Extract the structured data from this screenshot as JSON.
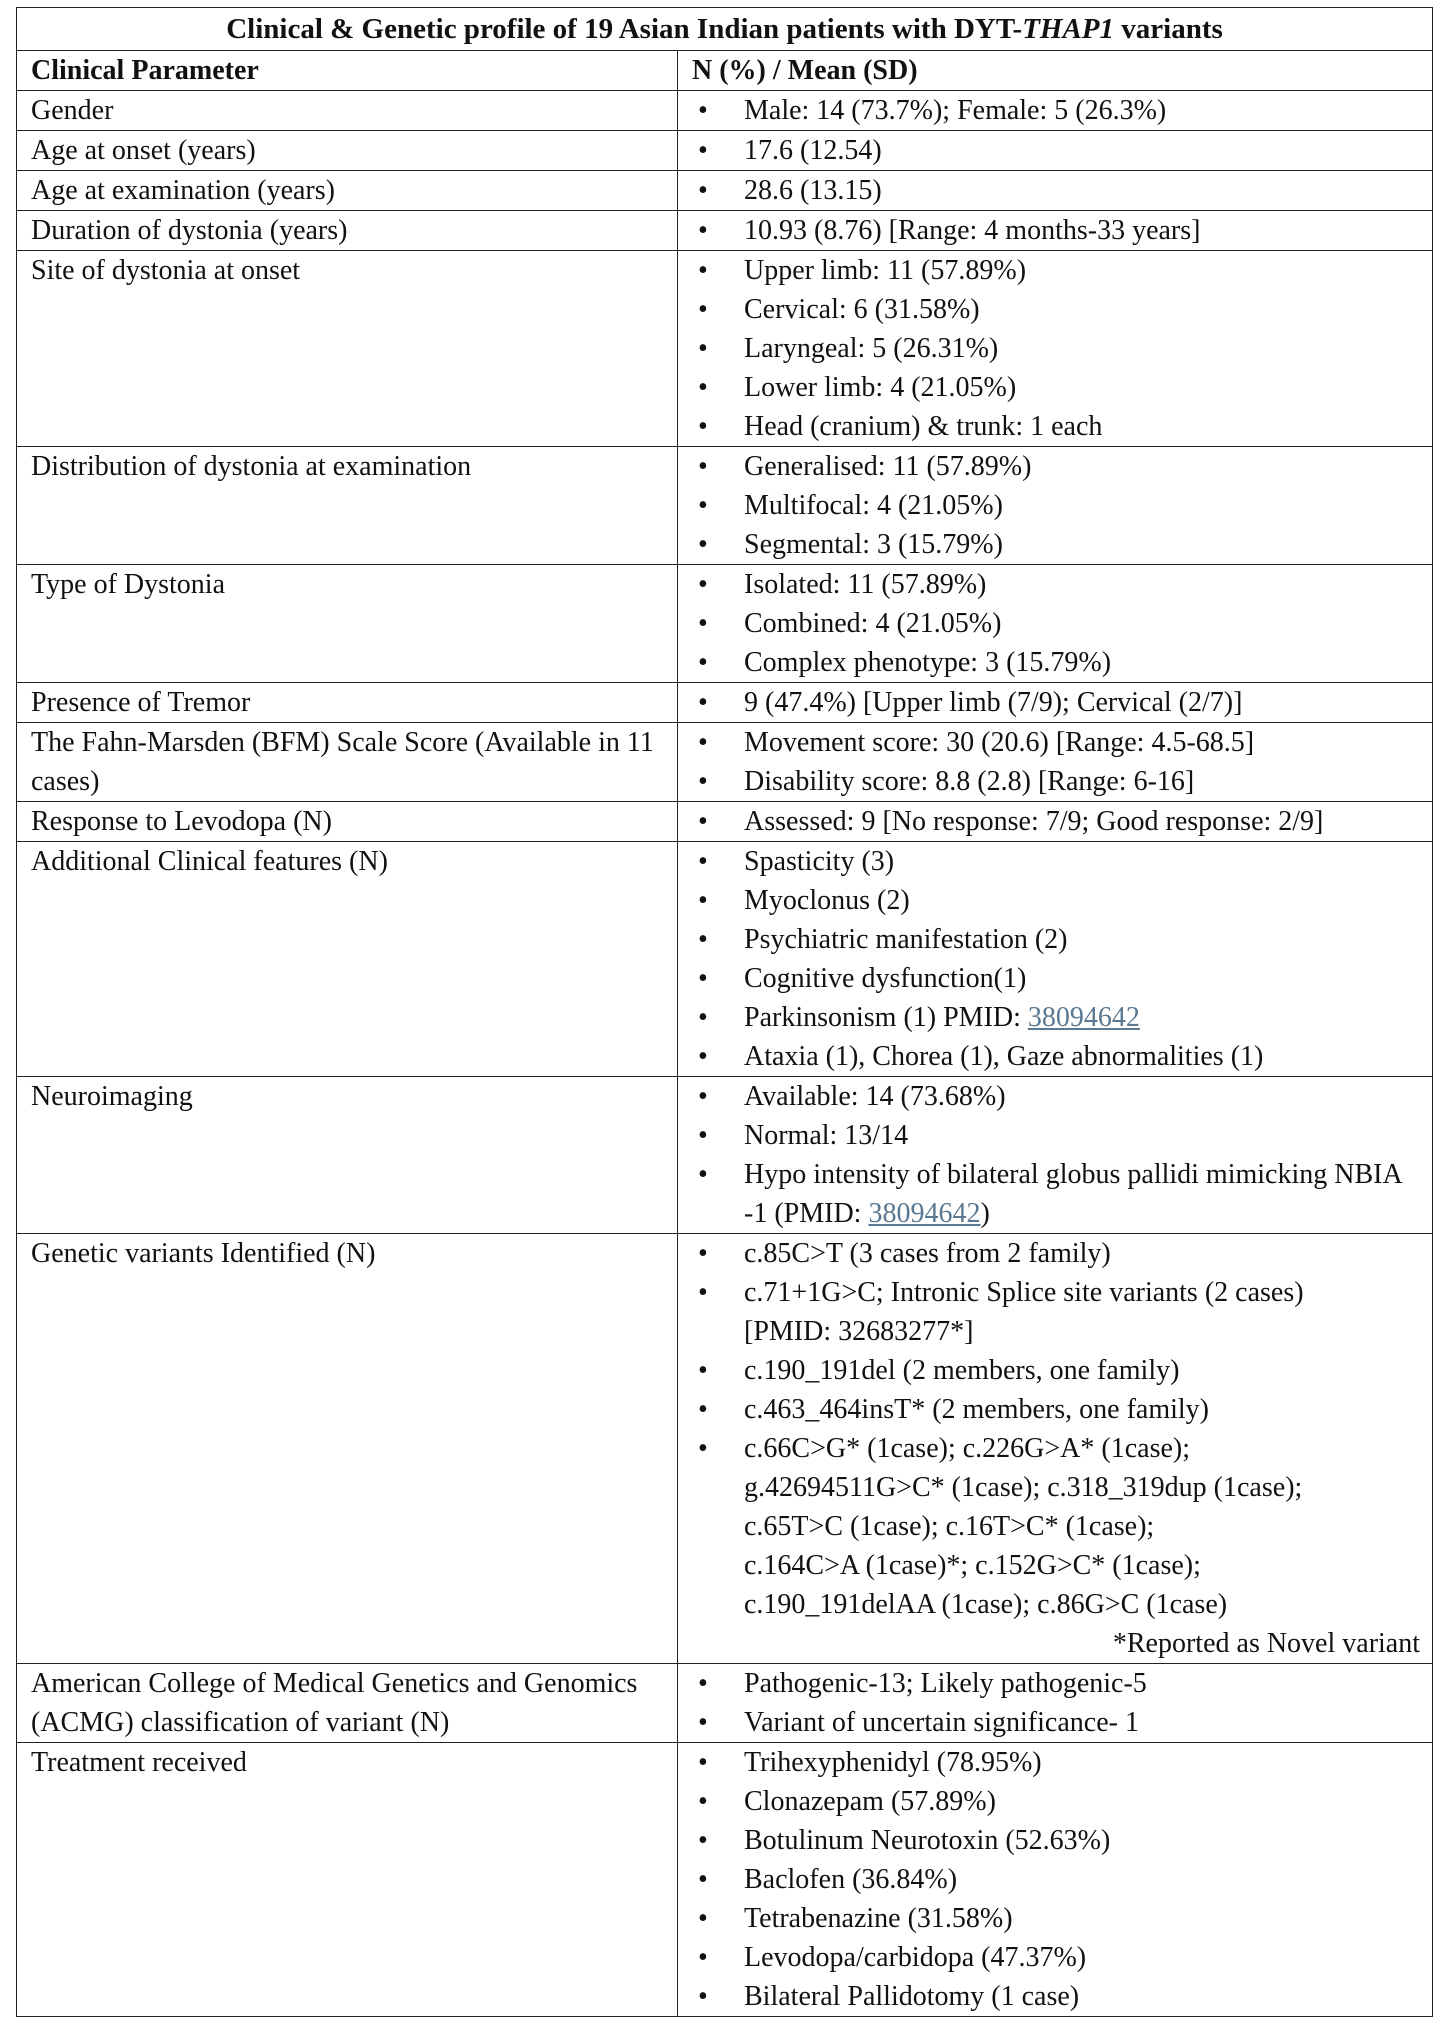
{
  "title": {
    "prefix": "Clinical & Genetic profile of 19 Asian Indian patients with DYT-",
    "gene": "THAP1",
    "suffix": " variants"
  },
  "headers": [
    "Clinical Parameter",
    "N (%) / Mean (SD)"
  ],
  "rows": [
    {
      "param": "Gender",
      "items": [
        {
          "text": "Male: 14 (73.7%); Female: 5 (26.3%)"
        }
      ]
    },
    {
      "param": "Age at onset (years)",
      "items": [
        {
          "text": "17.6 (12.54)"
        }
      ]
    },
    {
      "param": "Age at examination (years)",
      "items": [
        {
          "text": "28.6 (13.15)"
        }
      ]
    },
    {
      "param": "Duration of dystonia (years)",
      "items": [
        {
          "text": "10.93 (8.76) [Range: 4 months-33 years]"
        }
      ]
    },
    {
      "param": "Site of dystonia at onset",
      "items": [
        {
          "text": "Upper limb: 11 (57.89%)"
        },
        {
          "text": "Cervical: 6 (31.58%)"
        },
        {
          "text": "Laryngeal: 5 (26.31%)"
        },
        {
          "text": "Lower limb: 4 (21.05%)"
        },
        {
          "text": "Head (cranium) & trunk: 1 each"
        }
      ]
    },
    {
      "param": "Distribution of dystonia at examination",
      "items": [
        {
          "text": "Generalised: 11 (57.89%)"
        },
        {
          "text": "Multifocal: 4 (21.05%)"
        },
        {
          "text": "Segmental: 3 (15.79%)"
        }
      ]
    },
    {
      "param": "Type of Dystonia",
      "items": [
        {
          "text": "Isolated: 11 (57.89%)"
        },
        {
          "text": "Combined: 4 (21.05%)"
        },
        {
          "text": "Complex phenotype: 3 (15.79%)"
        }
      ]
    },
    {
      "param": "Presence of Tremor",
      "items": [
        {
          "text": "9 (47.4%) [Upper limb (7/9); Cervical (2/7)]"
        }
      ]
    },
    {
      "param": "The Fahn-Marsden (BFM) Scale Score (Available in 11 cases)",
      "items": [
        {
          "text": "Movement score: 30 (20.6) [Range: 4.5-68.5]"
        },
        {
          "text": "Disability score: 8.8 (2.8) [Range: 6-16]"
        }
      ]
    },
    {
      "param": "Response to Levodopa (N)",
      "items": [
        {
          "text": "Assessed: 9 [No response: 7/9; Good response: 2/9]"
        }
      ]
    },
    {
      "param": "Additional Clinical features (N)",
      "items": [
        {
          "text": "Spasticity (3)"
        },
        {
          "text": "Myoclonus (2)"
        },
        {
          "text": "Psychiatric manifestation (2)"
        },
        {
          "text": "Cognitive dysfunction(1)"
        },
        {
          "text": "Parkinsonism (1) PMID: ",
          "link": "38094642"
        },
        {
          "text": "Ataxia (1), Chorea (1), Gaze abnormalities (1)"
        }
      ]
    },
    {
      "param": "Neuroimaging",
      "items": [
        {
          "text": "Available: 14 (73.68%)"
        },
        {
          "text": "Normal: 13/14"
        },
        {
          "text": "Hypo intensity of bilateral globus pallidi mimicking NBIA -1 (PMID: ",
          "link": "38094642",
          "after": ")"
        }
      ]
    },
    {
      "param": "Genetic variants Identified (N)",
      "items": [
        {
          "text": "c.85C>T (3 cases from 2 family)"
        },
        {
          "text": "c.71+1G>C; Intronic Splice site variants (2 cases)\n[PMID: 32683277*]"
        },
        {
          "text": "c.190_191del (2 members, one family)"
        },
        {
          "text": "c.463_464insT* (2 members, one family)"
        },
        {
          "text": "c.66C>G* (1case); c.226G>A* (1case);\ng.42694511G>C* (1case); c.318_319dup (1case);\nc.65T>C (1case); c.16T>C* (1case);\nc.164C>A (1case)*; c.152G>C* (1case);\nc.190_191delAA (1case); c.86G>C  (1case)"
        }
      ],
      "note": "*Reported as Novel variant"
    },
    {
      "param": "American College of Medical Genetics and Genomics (ACMG) classification of variant (N)",
      "items": [
        {
          "text": "Pathogenic-13; Likely pathogenic-5"
        },
        {
          "text": "Variant of uncertain significance- 1"
        }
      ]
    },
    {
      "param": "Treatment received",
      "items": [
        {
          "text": "Trihexyphenidyl (78.95%)"
        },
        {
          "text": "Clonazepam (57.89%)"
        },
        {
          "text": "Botulinum Neurotoxin (52.63%)"
        },
        {
          "text": "Baclofen (36.84%)"
        },
        {
          "text": "Tetrabenazine (31.58%)"
        },
        {
          "text": "Levodopa/carbidopa (47.37%)"
        },
        {
          "text": "Bilateral Pallidotomy (1 case)"
        }
      ]
    }
  ],
  "colors": {
    "link": "#5a7891",
    "border": "#222222"
  }
}
